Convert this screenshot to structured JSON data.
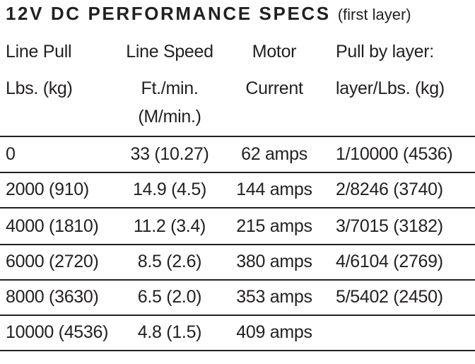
{
  "title": {
    "main": "12V DC PERFORMANCE SPECS",
    "note": "(first layer)"
  },
  "table": {
    "headers": [
      [
        "Line Pull",
        "Lbs. (kg)"
      ],
      [
        "Line Speed",
        "Ft./min.",
        "(M/min.)"
      ],
      [
        "Motor",
        "Current"
      ],
      [
        "Pull by layer:",
        "layer/Lbs. (kg)"
      ]
    ],
    "rows": [
      [
        "0",
        "33 (10.27)",
        "62 amps",
        "1/10000 (4536)"
      ],
      [
        "2000 (910)",
        "14.9 (4.5)",
        "144 amps",
        "2/8246 (3740)"
      ],
      [
        "4000 (1810)",
        "11.2 (3.4)",
        "215 amps",
        "3/7015 (3182)"
      ],
      [
        "6000 (2720)",
        "8.5 (2.6)",
        "380 amps",
        "4/6104 (2769)"
      ],
      [
        "8000 (3630)",
        "6.5 (2.0)",
        "353 amps",
        "5/5402 (2450)"
      ],
      [
        "10000 (4536)",
        "4.8 (1.5)",
        "409 amps"
      ]
    ]
  }
}
